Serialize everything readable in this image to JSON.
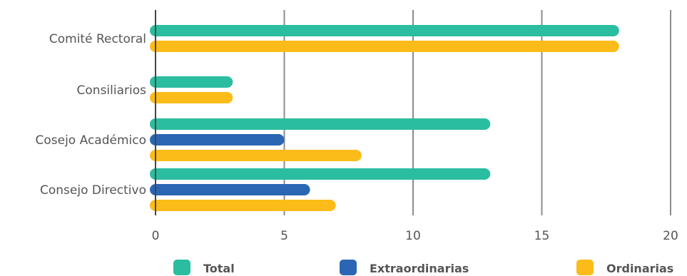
{
  "chart_data": {
    "type": "bar",
    "orientation": "horizontal",
    "categories": [
      "Comité Rectoral",
      "Consiliarios",
      "Cosejo Académico",
      "Consejo Directivo"
    ],
    "series": [
      {
        "name": "Total",
        "color": "#2bbd9f",
        "values": [
          18,
          3,
          13,
          13
        ]
      },
      {
        "name": "Extraordinarias",
        "color": "#2a66b3",
        "values": [
          0,
          0,
          5,
          6
        ]
      },
      {
        "name": "Ordinarias",
        "color": "#fbbc1a",
        "values": [
          18,
          3,
          8,
          7
        ]
      }
    ],
    "x_ticks": [
      "0",
      "5",
      "10",
      "15",
      "20"
    ],
    "xlim": [
      0,
      20
    ],
    "grid": true,
    "legend_position": "bottom"
  }
}
